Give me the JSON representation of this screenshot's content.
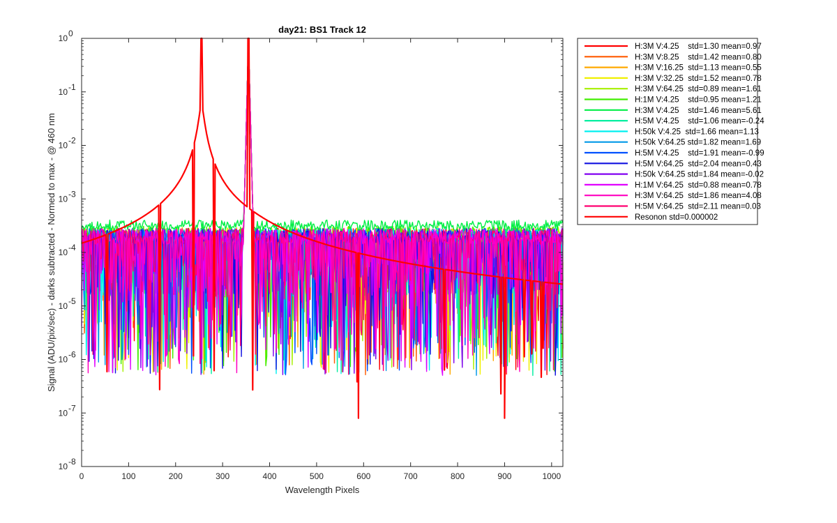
{
  "chart_data": {
    "type": "line",
    "title": "day21: BS1  Track 12",
    "xlabel": "Wavelength Pixels",
    "ylabel": "Signal (ADU/pix/sec) - darks subtracted - Normed to max - @ 460 nm",
    "xlim": [
      0,
      1024
    ],
    "ylim": [
      1e-08,
      1
    ],
    "yscale": "log",
    "x_ticks": [
      0,
      100,
      200,
      300,
      400,
      500,
      600,
      700,
      800,
      900,
      1000
    ],
    "x_tick_labels": [
      "0",
      "100",
      "200",
      "300",
      "400",
      "500",
      "600",
      "700",
      "800",
      "900",
      "1000"
    ],
    "y_ticks": [
      1e-08,
      1e-07,
      1e-06,
      1e-05,
      0.0001,
      0.001,
      0.01,
      0.1,
      1
    ],
    "y_tick_labels": [
      {
        "base": "10",
        "exp": "-8"
      },
      {
        "base": "10",
        "exp": "-7"
      },
      {
        "base": "10",
        "exp": "-6"
      },
      {
        "base": "10",
        "exp": "-5"
      },
      {
        "base": "10",
        "exp": "-4"
      },
      {
        "base": "10",
        "exp": "-3"
      },
      {
        "base": "10",
        "exp": "-2"
      },
      {
        "base": "10",
        "exp": "-1"
      },
      {
        "base": "10",
        "exp": "0"
      }
    ],
    "grid": false,
    "legend_position": "outside right, top",
    "peaks": [
      255,
      355
    ],
    "series": [
      {
        "name": "H:3M V:4.25    std=1.30 mean=0.97",
        "color": "#ff0000",
        "level": 0.0002
      },
      {
        "name": "H:3M V:8.25    std=1.42 mean=0.80",
        "color": "#ff5a00",
        "level": 0.0002
      },
      {
        "name": "H:3M V:16.25  std=1.13 mean=0.55",
        "color": "#ffaa00",
        "level": 0.0002
      },
      {
        "name": "H:3M V:32.25  std=1.52 mean=0.78",
        "color": "#f0f000",
        "level": 0.00021
      },
      {
        "name": "H:3M V:64.25  std=0.89 mean=1.61",
        "color": "#a6f000",
        "level": 0.00022
      },
      {
        "name": "H:1M V:4.25    std=0.95 mean=1.21",
        "color": "#40ee00",
        "level": 0.00022
      },
      {
        "name": "H:3M V:4.25    std=1.46 mean=5.61",
        "color": "#00ee44",
        "level": 0.00032
      },
      {
        "name": "H:5M V:4.25    std=1.06 mean=-0.24",
        "color": "#00eea0",
        "level": 0.0002
      },
      {
        "name": "H:50k V:4.25  std=1.66 mean=1.13",
        "color": "#00f0f0",
        "level": 0.0002
      },
      {
        "name": "H:50k V:64.25 std=1.82 mean=1.69",
        "color": "#0098e8",
        "level": 0.0002
      },
      {
        "name": "H:5M V:4.25    std=1.91 mean=-0.99",
        "color": "#0050ff",
        "level": 0.0002
      },
      {
        "name": "H:5M V:64.25  std=2.04 mean=0.43",
        "color": "#1010e0",
        "level": 0.0002
      },
      {
        "name": "H:50k V:64.25 std=1.84 mean=-0.02",
        "color": "#8000f0",
        "level": 0.0002
      },
      {
        "name": "H:1M V:64.25  std=0.88 mean=0.78",
        "color": "#e000ff",
        "level": 0.0002
      },
      {
        "name": "H:3M V:64.25  std=1.86 mean=4.08",
        "color": "#ff00c0",
        "level": 0.0002
      },
      {
        "name": "H:5M V:64.25  std=2.11 mean=0.03",
        "color": "#ff0070",
        "level": 0.0002
      },
      {
        "name": "Resonon std=0.000002",
        "color": "#ff0000",
        "level": 6e-06
      }
    ]
  }
}
